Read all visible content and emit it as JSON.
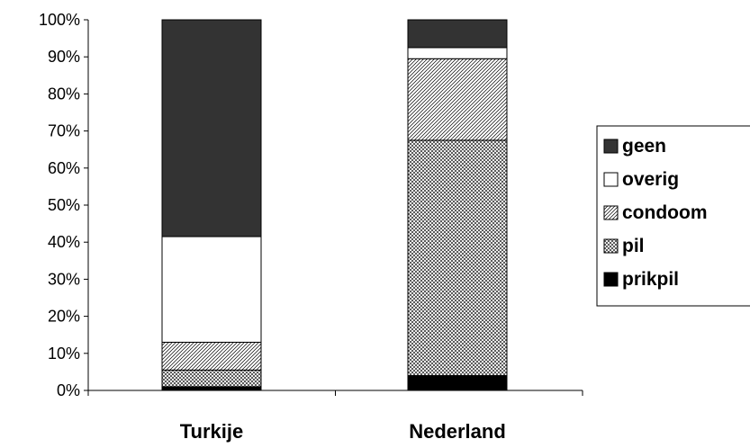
{
  "chart_data": {
    "type": "bar",
    "stacked": true,
    "percent": true,
    "categories": [
      "Turkije",
      "Nederland"
    ],
    "ylim": [
      0,
      100
    ],
    "yticks": [
      "0%",
      "10%",
      "20%",
      "30%",
      "40%",
      "50%",
      "60%",
      "70%",
      "80%",
      "90%",
      "100%"
    ],
    "grid": false,
    "legend_position": "right",
    "series": [
      {
        "name": "prikpil",
        "values": [
          1,
          4
        ],
        "pattern": "solid-black"
      },
      {
        "name": "pil",
        "values": [
          4.5,
          63.5
        ],
        "pattern": "crosshatch"
      },
      {
        "name": "condoom",
        "values": [
          7.5,
          22
        ],
        "pattern": "diagonal-lines"
      },
      {
        "name": "overig",
        "values": [
          28.5,
          3
        ],
        "pattern": "white"
      },
      {
        "name": "geen",
        "values": [
          58.5,
          7.5
        ],
        "pattern": "solid-dark-gray"
      }
    ],
    "legend_order": [
      "geen",
      "overig",
      "condoom",
      "pil",
      "prikpil"
    ],
    "colors": {
      "geen": "#333333",
      "overig": "#ffffff",
      "prikpil": "#000000",
      "outline": "#000000"
    }
  }
}
